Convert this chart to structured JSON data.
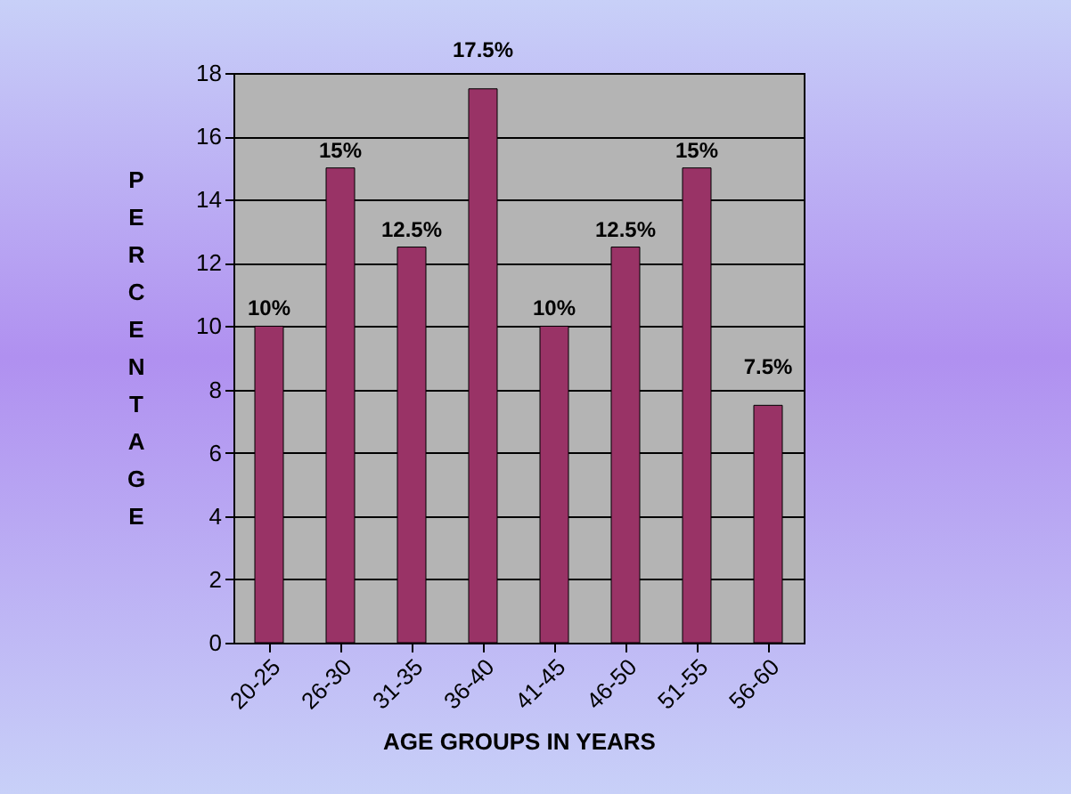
{
  "chart_data": {
    "type": "bar",
    "categories": [
      "20-25",
      "26-30",
      "31-35",
      "36-40",
      "41-45",
      "46-50",
      "51-55",
      "56-60"
    ],
    "values": [
      10,
      15,
      12.5,
      17.5,
      10,
      12.5,
      15,
      7.5
    ],
    "value_labels": [
      "10%",
      "15%",
      "12.5%",
      "17.5%",
      "10%",
      "12.5%",
      "15%",
      "7.5%"
    ],
    "color": "#993366",
    "xlabel": "AGE GROUPS IN YEARS",
    "ylabel": "PERCENTAGE",
    "ylim": [
      0,
      18
    ],
    "yticks": [
      0,
      2,
      4,
      6,
      8,
      10,
      12,
      14,
      16,
      18
    ],
    "grid": "y"
  }
}
